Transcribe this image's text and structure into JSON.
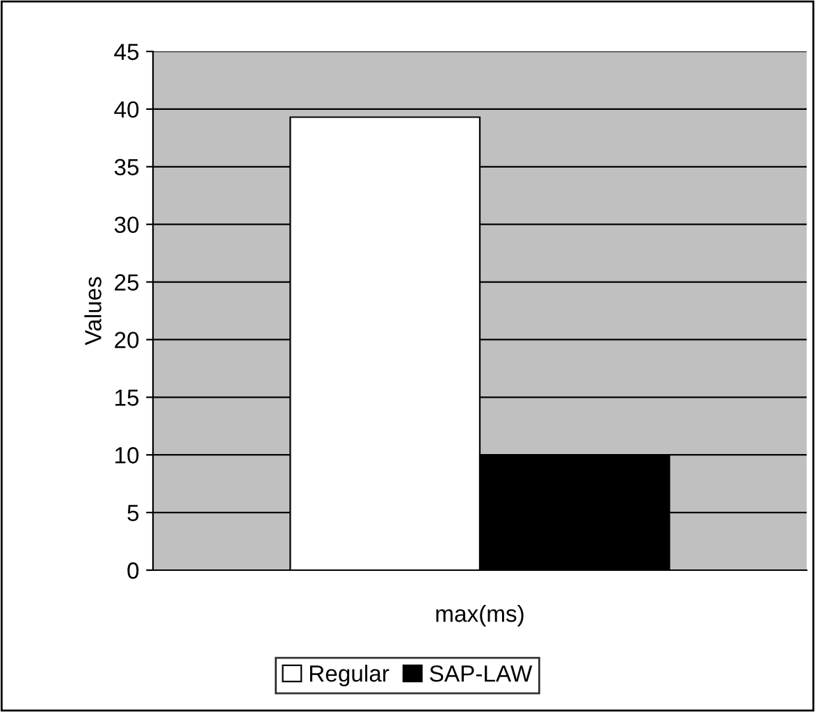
{
  "chart_data": {
    "type": "bar",
    "ylabel": "Values",
    "categories": [
      "max(ms)"
    ],
    "series": [
      {
        "name": "Regular",
        "color": "#ffffff",
        "values": [
          39.3
        ]
      },
      {
        "name": "SAP-LAW",
        "color": "#000000",
        "values": [
          10
        ]
      }
    ],
    "ylim": [
      0,
      45
    ],
    "yticks": [
      0,
      5,
      10,
      15,
      20,
      25,
      30,
      35,
      40,
      45
    ],
    "grid": "y",
    "legend": "bottom"
  }
}
